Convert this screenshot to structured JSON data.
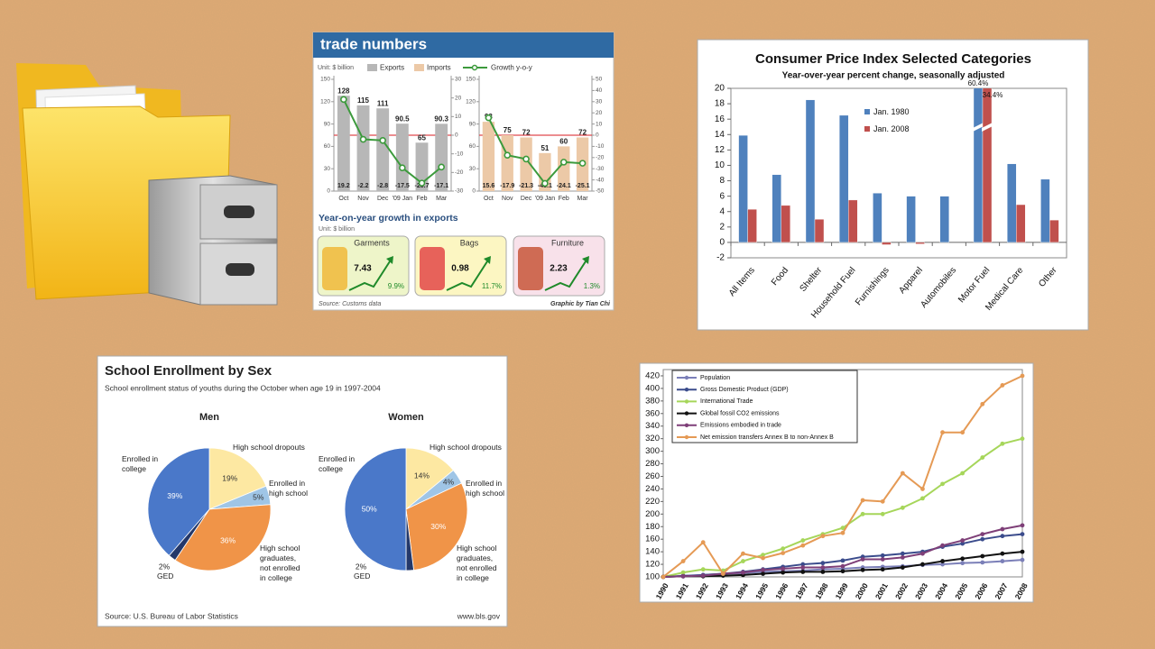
{
  "chart_data": [
    {
      "type": "bar",
      "title": "trade numbers",
      "unit": "Unit: $ billion",
      "panels": [
        {
          "categories": [
            "Oct",
            "Nov",
            "Dec",
            "'09 Jan",
            "Feb",
            "Mar"
          ],
          "series": [
            {
              "name": "Exports",
              "color": "#b7b7b7",
              "values": [
                128,
                115,
                111,
                90.5,
                65,
                90.3
              ]
            },
            {
              "name": "Growth y-o-y",
              "color": "#3c9a3c",
              "axis": "y2",
              "values": [
                19.2,
                -2.2,
                -2.8,
                -17.5,
                -25.7,
                -17.1
              ]
            }
          ],
          "ylim": [
            0,
            150
          ],
          "yticks": [
            0,
            30,
            60,
            90,
            120,
            150
          ],
          "y2lim": [
            -30,
            30
          ],
          "y2ticks": [
            -30,
            -20,
            -10,
            0,
            10,
            20,
            30
          ]
        },
        {
          "categories": [
            "Oct",
            "Nov",
            "Dec",
            "'09 Jan",
            "Feb",
            "Mar"
          ],
          "series": [
            {
              "name": "Imports",
              "color": "#ecc9a7",
              "values": [
                93,
                75,
                72,
                51,
                60,
                72
              ]
            },
            {
              "color": "#3c9a3c",
              "axis": "y2",
              "values": [
                15.6,
                -17.9,
                -21.3,
                -43.1,
                -24.1,
                -25.1
              ]
            }
          ],
          "ylim": [
            0,
            150
          ],
          "yticks": [
            0,
            30,
            60,
            90,
            120,
            150
          ],
          "y2lim": [
            -50,
            50
          ],
          "y2ticks": [
            -50,
            -40,
            -30,
            -20,
            -10,
            0,
            10,
            20,
            30,
            40,
            50
          ]
        }
      ],
      "subtitle": "Year-on-year growth in exports",
      "subtitle_unit": "Unit: $ billion",
      "items": [
        {
          "label": "Garments",
          "value": 7.43,
          "growth": "9.9%",
          "color": "#eef5c9"
        },
        {
          "label": "Bags",
          "value": 0.98,
          "growth": "11.7%",
          "color": "#fcf6c2"
        },
        {
          "label": "Furniture",
          "value": 2.23,
          "growth": "1.3%",
          "color": "#f8e1ea"
        }
      ],
      "source": "Source: Customs data",
      "credit": "Graphic by Tian Chi"
    },
    {
      "type": "bar",
      "title": "Consumer Price Index Selected Categories",
      "subtitle": "Year-over-year percent change, seasonally adjusted",
      "categories": [
        "All Items",
        "Food",
        "Shelter",
        "Household Fuel",
        "Furnishings",
        "Apparel",
        "Automobiles",
        "Motor Fuel",
        "Medical Care",
        "Other"
      ],
      "series": [
        {
          "name": "Jan. 1980",
          "color": "#4f81bd",
          "values": [
            13.9,
            8.8,
            18.5,
            16.5,
            6.4,
            6.0,
            6.0,
            60.4,
            10.2,
            8.2
          ],
          "value_labels": [
            null,
            null,
            null,
            null,
            null,
            null,
            null,
            "60.4%",
            null,
            null
          ]
        },
        {
          "name": "Jan. 2008",
          "color": "#c0504d",
          "values": [
            4.3,
            4.8,
            3.0,
            5.5,
            -0.3,
            -0.2,
            0,
            34.4,
            4.9,
            2.9
          ],
          "value_labels": [
            null,
            null,
            null,
            null,
            null,
            null,
            null,
            "34.4%",
            null,
            null
          ]
        }
      ],
      "ylim": [
        -2,
        20
      ],
      "yticks": [
        -2,
        0,
        2,
        4,
        6,
        8,
        10,
        12,
        14,
        16,
        18,
        20
      ]
    },
    {
      "type": "pie",
      "title": "School Enrollment by Sex",
      "subtitle": "School enrollment status of youths during the October when age 19 in 1997-2004",
      "categories": [
        "High school dropouts",
        "Enrolled in high school",
        "High school graduates, not enrolled in college",
        "GED",
        "Enrolled in college"
      ],
      "colors": [
        "#fde8a2",
        "#9fc5e6",
        "#f09448",
        "#24386a",
        "#4a78c9"
      ],
      "series": [
        {
          "name": "Men",
          "values": [
            19,
            5,
            36,
            2,
            39
          ],
          "value_labels": [
            "19%",
            "5%",
            "36%",
            "2%",
            "39%"
          ]
        },
        {
          "name": "Women",
          "values": [
            14,
            4,
            30,
            2,
            50
          ],
          "value_labels": [
            "14%",
            "4%",
            "30%",
            "2%",
            "50%"
          ]
        }
      ],
      "source": "Source: U.S. Bureau of Labor Statistics",
      "credit": "www.bls.gov"
    },
    {
      "type": "line",
      "categories": [
        "1990",
        "1991",
        "1992",
        "1993",
        "1994",
        "1995",
        "1996",
        "1997",
        "1998",
        "1999",
        "2000",
        "2001",
        "2002",
        "2003",
        "2004",
        "2005",
        "2006",
        "2007",
        "2008"
      ],
      "series": [
        {
          "name": "Population",
          "color": "#7b7fb8",
          "values": [
            100,
            102,
            103,
            105,
            106,
            108,
            109,
            110,
            112,
            113,
            115,
            116,
            117,
            119,
            120,
            122,
            123,
            125,
            127
          ]
        },
        {
          "name": "Gross Domestic Product (GDP)",
          "color": "#3b4c8c",
          "values": [
            100,
            101,
            103,
            105,
            108,
            112,
            116,
            120,
            122,
            126,
            132,
            134,
            137,
            140,
            148,
            153,
            160,
            165,
            168
          ]
        },
        {
          "name": "International Trade",
          "color": "#a6d65a",
          "values": [
            100,
            107,
            112,
            110,
            125,
            135,
            145,
            158,
            168,
            178,
            200,
            200,
            210,
            225,
            248,
            265,
            290,
            312,
            320
          ]
        },
        {
          "name": "Global fossil CO2 emissions",
          "color": "#111111",
          "values": [
            100,
            101,
            101,
            102,
            103,
            105,
            107,
            108,
            108,
            109,
            111,
            112,
            115,
            120,
            125,
            129,
            133,
            137,
            140
          ]
        },
        {
          "name": "Emissions embodied in trade",
          "color": "#7e3f78",
          "values": [
            100,
            101,
            102,
            105,
            107,
            111,
            113,
            115,
            115,
            117,
            128,
            128,
            131,
            137,
            150,
            158,
            168,
            176,
            182
          ]
        },
        {
          "name": "Net emission transfers Annex B to non-Annex B",
          "color": "#e59a55",
          "values": [
            100,
            125,
            155,
            105,
            137,
            130,
            138,
            150,
            165,
            170,
            222,
            220,
            265,
            240,
            330,
            330,
            375,
            405,
            420
          ]
        }
      ],
      "ylim": [
        100,
        430
      ],
      "yticks": [
        100,
        120,
        140,
        160,
        180,
        200,
        220,
        240,
        260,
        280,
        300,
        320,
        340,
        360,
        380,
        400,
        420
      ]
    }
  ]
}
